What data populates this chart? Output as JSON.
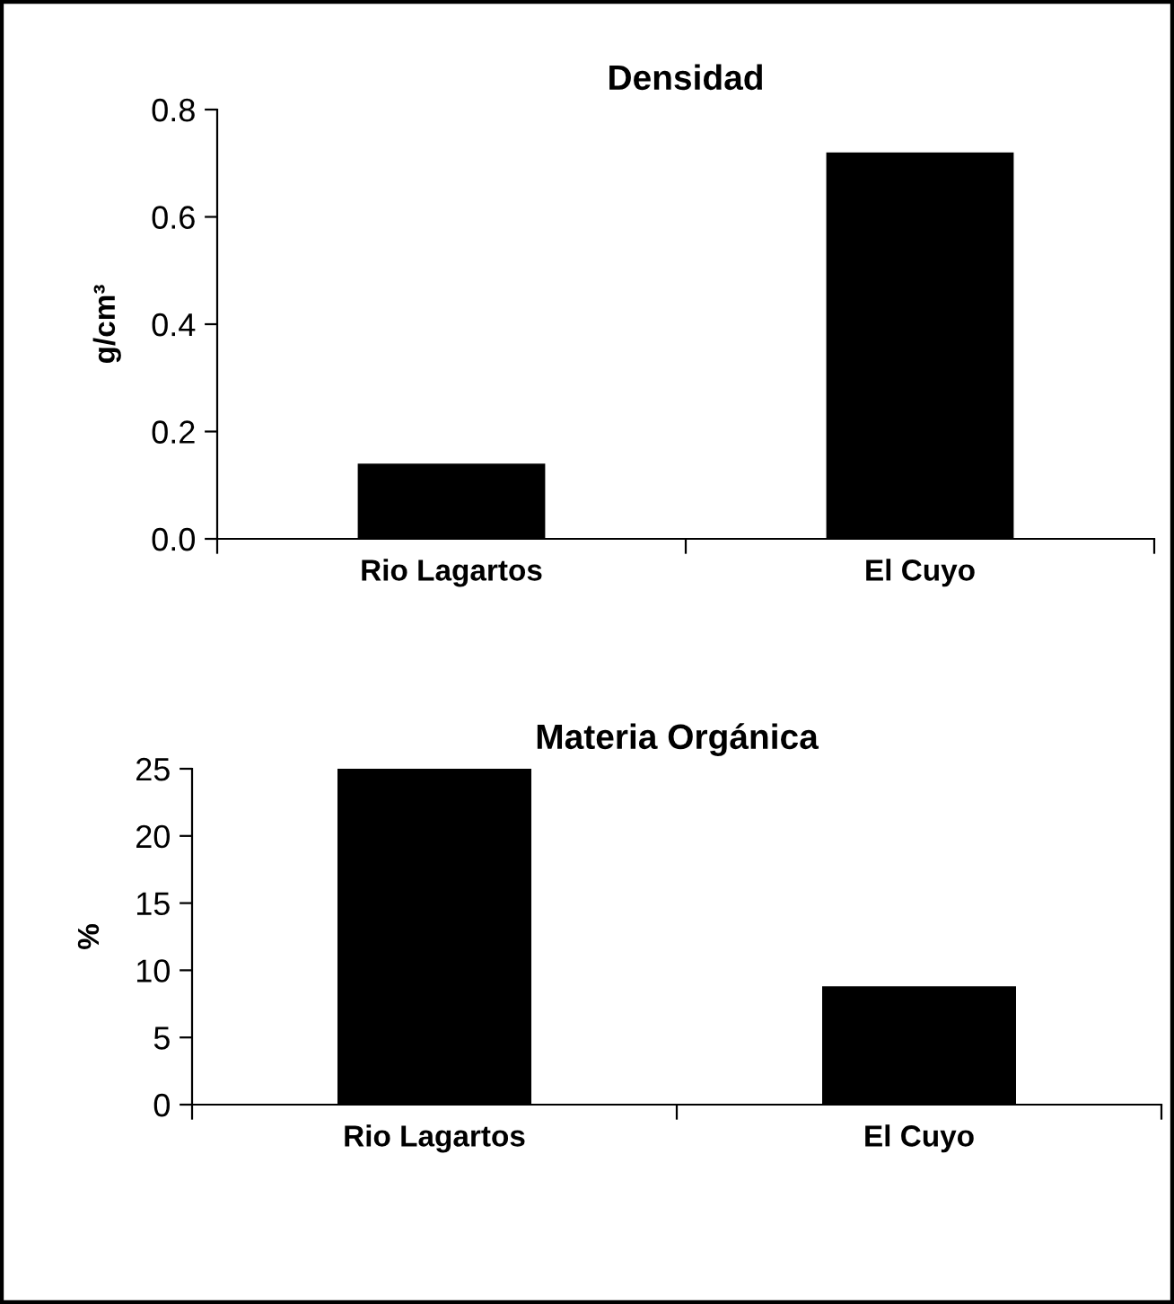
{
  "chart_data": [
    {
      "type": "bar",
      "title": "Densidad",
      "ylabel": "g/cm³",
      "categories": [
        "Rio Lagartos",
        "El Cuyo"
      ],
      "values": [
        0.14,
        0.72
      ],
      "color": "#000000",
      "ylim": [
        0,
        0.8
      ],
      "yticks": [
        {
          "value": 0,
          "label": "0.0"
        },
        0.2,
        0.4,
        0.6,
        0.8
      ],
      "grid": false
    },
    {
      "type": "bar",
      "title": "Materia Orgánica",
      "ylabel": "%",
      "categories": [
        "Rio Lagartos",
        "El Cuyo"
      ],
      "values": [
        25,
        8.8
      ],
      "color": "#000000",
      "ylim": [
        0,
        25
      ],
      "yticks": [
        0,
        5,
        10,
        15,
        20,
        25
      ],
      "grid": false
    }
  ]
}
